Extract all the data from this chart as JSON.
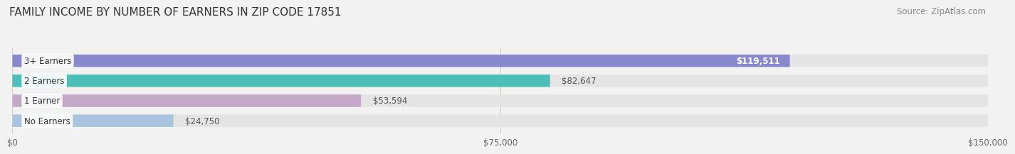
{
  "title": "FAMILY INCOME BY NUMBER OF EARNERS IN ZIP CODE 17851",
  "source": "Source: ZipAtlas.com",
  "categories": [
    "No Earners",
    "1 Earner",
    "2 Earners",
    "3+ Earners"
  ],
  "values": [
    24750,
    53594,
    82647,
    119511
  ],
  "bar_colors": [
    "#aac4e0",
    "#c4a8c8",
    "#4dbfb8",
    "#8888cc"
  ],
  "label_colors": [
    "#555555",
    "#555555",
    "#555555",
    "#ffffff"
  ],
  "xlim": [
    0,
    150000
  ],
  "xticks": [
    0,
    75000,
    150000
  ],
  "xtick_labels": [
    "$0",
    "$75,000",
    "$150,000"
  ],
  "background_color": "#f2f2f2",
  "bar_background_color": "#e4e4e4",
  "title_fontsize": 11,
  "source_fontsize": 8.5
}
